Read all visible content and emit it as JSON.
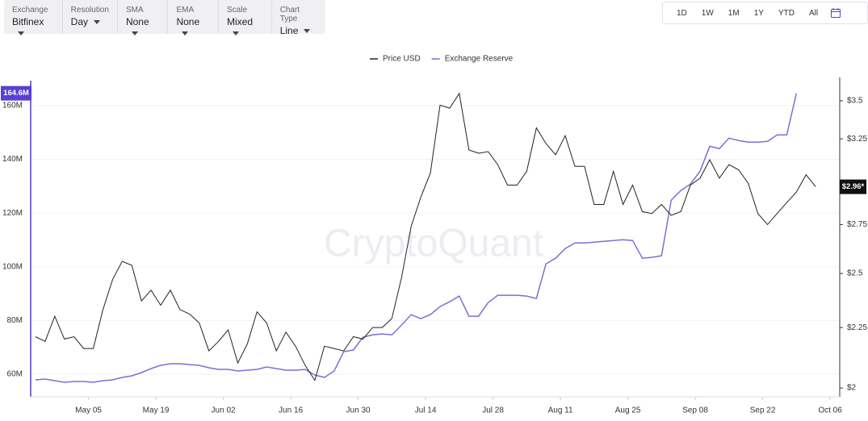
{
  "toolbar": {
    "dropdowns": [
      {
        "label": "Exchange",
        "value": "Bitfinex"
      },
      {
        "label": "Resolution",
        "value": "Day"
      },
      {
        "label": "SMA",
        "value": "None"
      },
      {
        "label": "EMA",
        "value": "None"
      },
      {
        "label": "Scale",
        "value": "Mixed"
      },
      {
        "label": "Chart Type",
        "value": "Line"
      }
    ],
    "ranges": [
      "1D",
      "1W",
      "1M",
      "1Y",
      "YTD",
      "All"
    ]
  },
  "chart_data": {
    "type": "line",
    "watermark": "CryptoQuant",
    "x": [
      "Apr 24",
      "Apr 26",
      "Apr 28",
      "Apr 30",
      "May 02",
      "May 04",
      "May 06",
      "May 08",
      "May 10",
      "May 12",
      "May 14",
      "May 16",
      "May 18",
      "May 20",
      "May 22",
      "May 24",
      "May 26",
      "May 28",
      "May 30",
      "Jun 01",
      "Jun 03",
      "Jun 05",
      "Jun 07",
      "Jun 09",
      "Jun 11",
      "Jun 13",
      "Jun 15",
      "Jun 17",
      "Jun 19",
      "Jun 21",
      "Jun 23",
      "Jun 25",
      "Jun 27",
      "Jun 29",
      "Jul 01",
      "Jul 03",
      "Jul 05",
      "Jul 07",
      "Jul 09",
      "Jul 11",
      "Jul 13",
      "Jul 15",
      "Jul 17",
      "Jul 19",
      "Jul 21",
      "Jul 23",
      "Jul 25",
      "Jul 27",
      "Jul 29",
      "Jul 31",
      "Aug 02",
      "Aug 04",
      "Aug 06",
      "Aug 08",
      "Aug 10",
      "Aug 12",
      "Aug 14",
      "Aug 16",
      "Aug 18",
      "Aug 20",
      "Aug 22",
      "Aug 24",
      "Aug 26",
      "Aug 28",
      "Aug 30",
      "Sep 01",
      "Sep 03",
      "Sep 05",
      "Sep 07",
      "Sep 09",
      "Sep 11",
      "Sep 13",
      "Sep 15",
      "Sep 17",
      "Sep 19",
      "Sep 21",
      "Sep 23",
      "Sep 25",
      "Sep 27",
      "Sep 29",
      "Oct 01",
      "Oct 03"
    ],
    "xlim": [
      "Apr 23",
      "Oct 08"
    ],
    "xticks": [
      "May 05",
      "May 19",
      "Jun 02",
      "Jun 16",
      "Jun 30",
      "Jul 14",
      "Jul 28",
      "Aug 11",
      "Aug 25",
      "Sep 08",
      "Sep 22",
      "Oct 06"
    ],
    "series": [
      {
        "name": "Price USD",
        "color": "#222222",
        "axis": "y2",
        "values": [
          2.21,
          2.19,
          2.3,
          2.2,
          2.21,
          2.16,
          2.16,
          2.33,
          2.47,
          2.56,
          2.54,
          2.37,
          2.42,
          2.35,
          2.42,
          2.33,
          2.31,
          2.27,
          2.15,
          2.19,
          2.24,
          2.1,
          2.18,
          2.32,
          2.27,
          2.15,
          2.23,
          2.17,
          2.09,
          2.03,
          2.17,
          2.16,
          2.15,
          2.21,
          2.2,
          2.25,
          2.25,
          2.29,
          2.48,
          2.74,
          2.9,
          3.04,
          3.47,
          3.45,
          3.55,
          3.18,
          3.16,
          3.17,
          3.09,
          2.97,
          2.97,
          3.05,
          3.32,
          3.22,
          3.15,
          3.27,
          3.08,
          3.08,
          2.86,
          2.86,
          3.05,
          2.86,
          2.97,
          2.82,
          2.81,
          2.86,
          2.8,
          2.82,
          2.97,
          3.01,
          3.12,
          3.01,
          3.09,
          3.06,
          2.98,
          2.81,
          2.75,
          2.81,
          2.87,
          2.93,
          3.03,
          2.96
        ]
      },
      {
        "name": "Exchange Reserve",
        "color": "#7b6fd6",
        "axis": "y",
        "values": [
          57.9,
          58.2,
          57.6,
          57.0,
          57.3,
          57.3,
          57.0,
          57.6,
          57.9,
          58.8,
          59.4,
          60.6,
          62.1,
          63.3,
          63.9,
          63.9,
          63.6,
          63.3,
          62.4,
          61.8,
          61.8,
          61.2,
          61.5,
          61.8,
          62.7,
          62.1,
          61.5,
          61.5,
          61.8,
          59.7,
          58.8,
          61.2,
          68.4,
          69.0,
          73.8,
          74.7,
          75.0,
          74.7,
          78.3,
          82.2,
          80.7,
          82.2,
          85.2,
          87.0,
          89.1,
          81.6,
          81.6,
          86.7,
          89.4,
          89.4,
          89.4,
          89.1,
          88.2,
          101.1,
          103.2,
          106.8,
          108.9,
          108.9,
          109.2,
          109.5,
          109.8,
          110.1,
          109.8,
          103.2,
          103.5,
          104.1,
          124.8,
          128.4,
          130.8,
          135.6,
          144.9,
          144.0,
          147.9,
          147.0,
          146.4,
          146.4,
          146.7,
          149.1,
          149.1,
          164.6,
          null,
          null
        ]
      }
    ],
    "ylim": [
      51.6,
      169.3
    ],
    "yticks": [
      {
        "value": 60,
        "label": "60M"
      },
      {
        "value": 80,
        "label": "80M"
      },
      {
        "value": 100,
        "label": "100M"
      },
      {
        "value": 120,
        "label": "120M"
      },
      {
        "value": 140,
        "label": "140M"
      },
      {
        "value": 160,
        "label": "160M"
      }
    ],
    "y2lim": [
      1.966,
      3.64
    ],
    "y2scale": "log",
    "y2ticks": [
      {
        "value": 2,
        "label": "$2"
      },
      {
        "value": 2.25,
        "label": "$2.25"
      },
      {
        "value": 2.5,
        "label": "$2.5"
      },
      {
        "value": 2.75,
        "label": "$2.75"
      },
      {
        "value": 3.25,
        "label": "$3.25"
      },
      {
        "value": 3.5,
        "label": "$3.5"
      }
    ],
    "grid": true,
    "annotations": [
      {
        "axis": "y",
        "value": 164.6,
        "label": "164.6M",
        "color": "#5b3fd6"
      },
      {
        "axis": "y2",
        "value": 2.96,
        "label": "$2.96*",
        "color": "#111111"
      }
    ]
  }
}
